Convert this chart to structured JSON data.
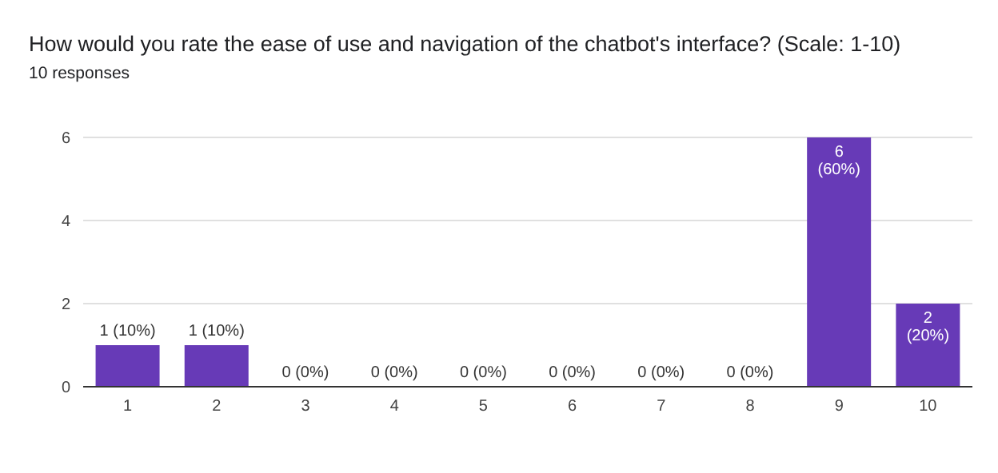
{
  "chart_data": {
    "type": "bar",
    "title": "How would you rate the ease of use and navigation of the chatbot's interface? (Scale: 1-10)",
    "subtitle": "10 responses",
    "categories": [
      "1",
      "2",
      "3",
      "4",
      "5",
      "6",
      "7",
      "8",
      "9",
      "10"
    ],
    "values": [
      1,
      1,
      0,
      0,
      0,
      0,
      0,
      0,
      6,
      2
    ],
    "value_labels": [
      "1 (10%)",
      "1 (10%)",
      "0 (0%)",
      "0 (0%)",
      "0 (0%)",
      "0 (0%)",
      "0 (0%)",
      "0 (0%)",
      "6 (60%)",
      "2 (20%)"
    ],
    "color": "#673ab7",
    "ylim": [
      0,
      6
    ],
    "yticks": [
      0,
      2,
      4,
      6
    ],
    "grid": "y",
    "legend": false
  }
}
